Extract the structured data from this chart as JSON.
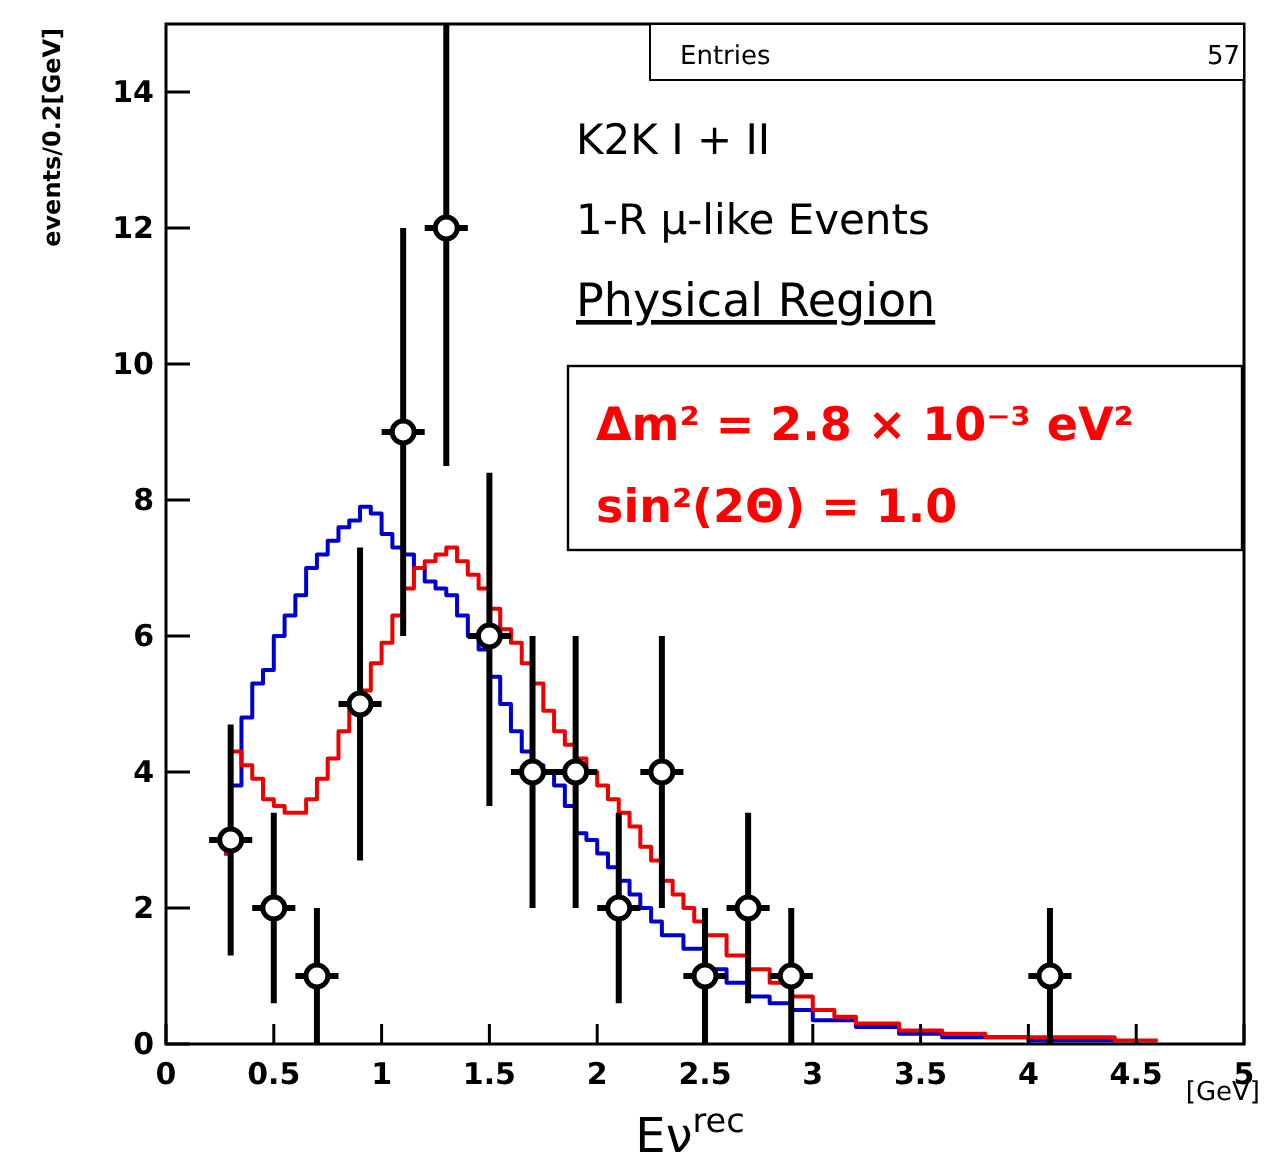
{
  "chart_data": {
    "type": "step",
    "ylabel": "events/0.2[GeV]",
    "xlabel": "Eν$^{rec}$",
    "xlim": [
      0,
      5
    ],
    "ylim": [
      0,
      15
    ],
    "xticks": [
      0,
      0.5,
      1,
      1.5,
      2,
      2.5,
      3,
      3.5,
      4,
      4.5,
      5
    ],
    "yticks": [
      0,
      2,
      4,
      6,
      8,
      10,
      12,
      14
    ],
    "grid": false,
    "annotations": [
      "Entries",
      "57",
      "K2K I + II",
      "1-R μ-like Events",
      "Physical Region",
      "Δm² = 2.8 × 10⁻³ eV²",
      "sin²(2Θ) = 1.0",
      "[GeV]"
    ],
    "series": [
      {
        "color": "#0000cc",
        "x": [
          0.27,
          0.3,
          0.35,
          0.4,
          0.45,
          0.5,
          0.55,
          0.6,
          0.65,
          0.7,
          0.75,
          0.8,
          0.85,
          0.9,
          0.95,
          1.0,
          1.05,
          1.1,
          1.15,
          1.2,
          1.25,
          1.3,
          1.35,
          1.4,
          1.45,
          1.5,
          1.55,
          1.6,
          1.65,
          1.7,
          1.75,
          1.8,
          1.85,
          1.9,
          1.95,
          2.0,
          2.05,
          2.1,
          2.15,
          2.2,
          2.25,
          2.3,
          2.4,
          2.5,
          2.6,
          2.7,
          2.8,
          2.9,
          3.0,
          3.2,
          3.4,
          3.6,
          4.0,
          4.4
        ],
        "values": [
          2.8,
          3.8,
          4.8,
          5.3,
          5.5,
          6.0,
          6.3,
          6.6,
          7.0,
          7.2,
          7.4,
          7.6,
          7.7,
          7.9,
          7.8,
          7.5,
          7.3,
          7.2,
          7.0,
          6.8,
          6.7,
          6.6,
          6.3,
          6.0,
          5.8,
          5.4,
          5.0,
          4.6,
          4.3,
          4.1,
          4.0,
          3.8,
          3.5,
          3.1,
          3.0,
          2.8,
          2.6,
          2.4,
          2.2,
          2.0,
          1.8,
          1.6,
          1.4,
          1.1,
          0.9,
          0.7,
          0.6,
          0.5,
          0.35,
          0.25,
          0.15,
          0.1,
          0.05,
          0.05
        ]
      },
      {
        "color": "#ee0000",
        "x": [
          0.27,
          0.3,
          0.35,
          0.4,
          0.45,
          0.5,
          0.55,
          0.6,
          0.65,
          0.7,
          0.75,
          0.8,
          0.85,
          0.9,
          0.95,
          1.0,
          1.05,
          1.1,
          1.15,
          1.2,
          1.25,
          1.3,
          1.35,
          1.4,
          1.45,
          1.5,
          1.55,
          1.6,
          1.65,
          1.7,
          1.75,
          1.8,
          1.85,
          1.9,
          1.95,
          2.0,
          2.05,
          2.1,
          2.15,
          2.2,
          2.25,
          2.3,
          2.35,
          2.4,
          2.45,
          2.5,
          2.6,
          2.7,
          2.8,
          2.9,
          3.0,
          3.1,
          3.2,
          3.4,
          3.6,
          3.8,
          4.0,
          4.4,
          4.6
        ],
        "values": [
          2.8,
          4.3,
          4.1,
          3.9,
          3.6,
          3.5,
          3.4,
          3.4,
          3.6,
          3.9,
          4.2,
          4.6,
          4.9,
          5.2,
          5.6,
          5.9,
          6.3,
          6.7,
          7.0,
          7.1,
          7.2,
          7.3,
          7.1,
          6.9,
          6.7,
          6.4,
          6.1,
          5.9,
          5.6,
          5.3,
          4.9,
          4.6,
          4.4,
          4.2,
          4.0,
          3.8,
          3.6,
          3.4,
          3.2,
          2.9,
          2.7,
          2.4,
          2.2,
          2.0,
          1.8,
          1.6,
          1.3,
          1.1,
          0.9,
          0.7,
          0.5,
          0.4,
          0.3,
          0.2,
          0.15,
          0.1,
          0.1,
          0.05,
          0.05
        ]
      },
      {
        "type": "scatter",
        "color": "#000000",
        "marker": "circle",
        "x": [
          0.3,
          0.5,
          0.7,
          0.9,
          1.1,
          1.3,
          1.5,
          1.7,
          1.9,
          2.1,
          2.3,
          2.5,
          2.7,
          2.9,
          4.1
        ],
        "values": [
          3,
          2,
          1,
          5,
          9,
          12,
          6,
          4,
          4,
          2,
          4,
          1,
          2,
          1,
          1
        ],
        "errors": [
          [
            1.3,
            4.7
          ],
          [
            0.6,
            3.4
          ],
          [
            0,
            2
          ],
          [
            2.7,
            7.3
          ],
          [
            6,
            12
          ],
          [
            8.5,
            15
          ],
          [
            3.5,
            8.4
          ],
          [
            2,
            6
          ],
          [
            2,
            6
          ],
          [
            0.6,
            3.4
          ],
          [
            2,
            6
          ],
          [
            0,
            2
          ],
          [
            0.6,
            3.4
          ],
          [
            0,
            2
          ],
          [
            0,
            2
          ]
        ],
        "xerrors": [
          0.1,
          0.1,
          0.1,
          0.1,
          0.1,
          0.1,
          0.1,
          0.1,
          0.1,
          0.1,
          0.1,
          0.1,
          0.1,
          0.1,
          0.1
        ]
      }
    ]
  }
}
